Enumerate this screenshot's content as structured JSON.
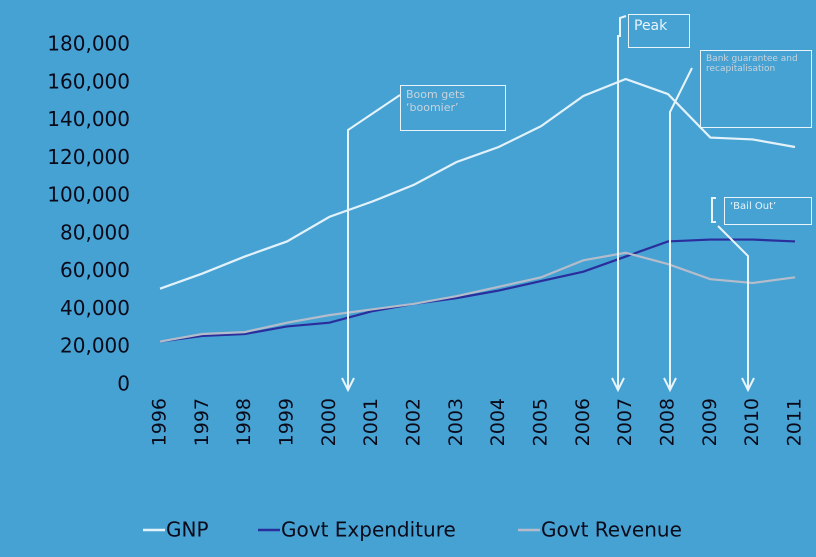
{
  "chart_data": {
    "type": "line",
    "categories": [
      "1996",
      "1997",
      "1998",
      "1999",
      "2000",
      "2001",
      "2002",
      "2003",
      "2004",
      "2005",
      "2006",
      "2007",
      "2008",
      "2009",
      "2010",
      "2011"
    ],
    "series": [
      {
        "name": "GNP",
        "color": "#e3f2fa",
        "values": [
          51000,
          59000,
          68000,
          76000,
          89000,
          97000,
          106000,
          118000,
          126000,
          137000,
          153000,
          162000,
          154000,
          131000,
          130000,
          126000
        ]
      },
      {
        "name": "Govt Expenditure",
        "color": "#2a2d9c",
        "values": [
          23000,
          26000,
          27000,
          31000,
          33000,
          39000,
          43000,
          46000,
          50000,
          55000,
          60000,
          68000,
          76000,
          77000,
          77000,
          76000
        ]
      },
      {
        "name": "Govt Revenue",
        "color": "#b4bccb",
        "values": [
          23000,
          27000,
          28000,
          33000,
          37000,
          40000,
          43000,
          47000,
          52000,
          57000,
          66000,
          70000,
          64000,
          56000,
          54000,
          57000
        ]
      }
    ],
    "ylim": [
      0,
      180000
    ],
    "yticks": [
      0,
      {
        "value": 20000,
        "label": "20,000"
      },
      {
        "value": 40000,
        "label": "40,000"
      },
      {
        "value": 60000,
        "label": "60,000"
      },
      {
        "value": 80000,
        "label": "80,000"
      },
      {
        "value": 100000,
        "label": "100,000"
      },
      {
        "value": 120000,
        "label": "120,000"
      },
      {
        "value": 140000,
        "label": "140,000"
      },
      {
        "value": 160000,
        "label": "160,000"
      },
      {
        "value": 180000,
        "label": "180,000"
      }
    ],
    "grid": false,
    "legend": "bottom",
    "annotations": [
      {
        "text": "Boom gets ‘boomier’"
      },
      {
        "text": "Peak"
      },
      {
        "text": "Bank guarantee and recapitalisation"
      },
      {
        "text": "‘Bail Out’"
      }
    ]
  }
}
